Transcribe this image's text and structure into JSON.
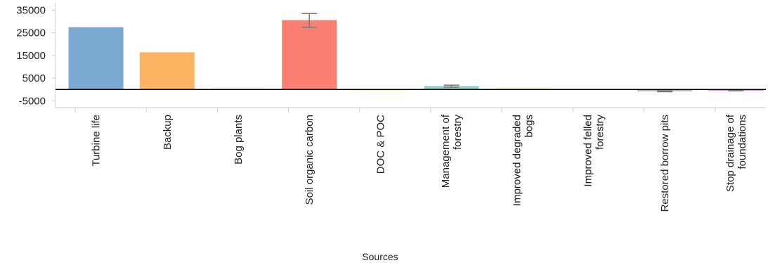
{
  "chart_data": {
    "type": "bar",
    "title": "",
    "xlabel": "Sources",
    "ylabel": "",
    "ylim": [
      -8000,
      37000
    ],
    "yticks": [
      35000,
      25000,
      15000,
      5000,
      -5000
    ],
    "grid": false,
    "categories": [
      "Turbine life",
      "Backup",
      "Bog plants",
      "Soil organic carbon",
      "DOC & POC",
      "Management of forestry",
      "Improved degraded bogs",
      "Improved felled forestry",
      "Restored borrow pits",
      "Stop drainage of foundations"
    ],
    "category_lines": [
      [
        "Turbine life"
      ],
      [
        "Backup"
      ],
      [
        "Bog plants"
      ],
      [
        "Soil organic carbon"
      ],
      [
        "DOC & POC"
      ],
      [
        "Management of",
        "forestry"
      ],
      [
        "Improved degraded",
        "bogs"
      ],
      [
        "Improved felled",
        "forestry"
      ],
      [
        "Restored borrow pits"
      ],
      [
        "Stop drainage of",
        "foundations"
      ]
    ],
    "values": [
      27500,
      16400,
      300,
      30600,
      100,
      1500,
      400,
      200,
      -800,
      -500
    ],
    "error_low": [
      27500,
      16300,
      250,
      27500,
      100,
      1000,
      350,
      150,
      -1000,
      -600
    ],
    "error_high": [
      27600,
      16450,
      400,
      33500,
      150,
      1900,
      450,
      250,
      -600,
      -400
    ],
    "colors": [
      "#7aaad2",
      "#fdb462",
      "#bebada",
      "#fb8072",
      "#b3de69",
      "#8dd3c7",
      "#b3de69",
      "#fccde5",
      "#b0b0b0",
      "#bc80bd"
    ],
    "error_bar_color": "#777777",
    "zero_line_color": "#000000"
  }
}
